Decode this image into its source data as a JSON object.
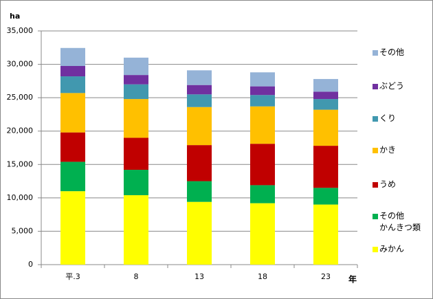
{
  "chart_data": {
    "type": "bar",
    "stacked": true,
    "y_label": "ha",
    "x_label": "年",
    "categories": [
      "平.3",
      "8",
      "13",
      "18",
      "23"
    ],
    "series": [
      {
        "name": "みかん",
        "color": "#ffff00",
        "values": [
          11000,
          10400,
          9400,
          9200,
          9000
        ]
      },
      {
        "name": "その他\nかんきつ類",
        "color": "#00b050",
        "values": [
          4400,
          3800,
          3100,
          2700,
          2500
        ]
      },
      {
        "name": "うめ",
        "color": "#c00000",
        "values": [
          4400,
          4800,
          5400,
          6200,
          6300
        ]
      },
      {
        "name": "かき",
        "color": "#ffc000",
        "values": [
          5900,
          5800,
          5700,
          5600,
          5400
        ]
      },
      {
        "name": "くり",
        "color": "#4198af",
        "values": [
          2500,
          2200,
          1900,
          1700,
          1600
        ]
      },
      {
        "name": "ぶどう",
        "color": "#7030a0",
        "values": [
          1550,
          1400,
          1400,
          1300,
          1100
        ]
      },
      {
        "name": "その他",
        "color": "#95b3d7",
        "values": [
          2700,
          2600,
          2200,
          2100,
          1900
        ]
      }
    ],
    "ylim": [
      0,
      35000
    ],
    "yticks": [
      0,
      {
        "value": 5000,
        "label": "5,000"
      },
      {
        "value": 10000,
        "label": "10,000"
      },
      {
        "value": 15000,
        "label": "15,000"
      },
      {
        "value": 20000,
        "label": "20,000"
      },
      {
        "value": 25000,
        "label": "25,000"
      },
      {
        "value": 30000,
        "label": "30,000"
      },
      {
        "value": 35000,
        "label": "35,000"
      }
    ],
    "grid": true,
    "legend": "right"
  }
}
